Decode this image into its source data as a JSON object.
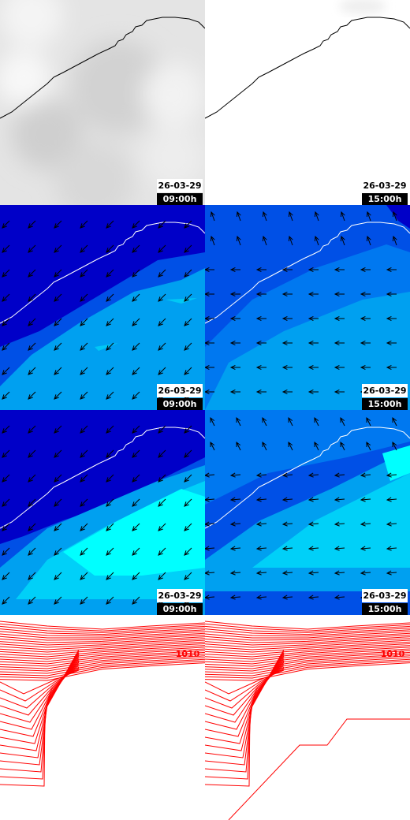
{
  "panels": [
    {
      "date": "26-03-29",
      "time": "09:00h"
    },
    {
      "date": "26-03-29",
      "time": "15:00h"
    },
    {
      "date": "26-03-29",
      "time": "09:00h"
    },
    {
      "date": "26-03-29",
      "time": "15:00h"
    },
    {
      "date": "26-03-29",
      "time": "09:00h"
    },
    {
      "date": "26-03-29",
      "time": "15:00h"
    }
  ],
  "contour_labels": [
    "1010",
    "1010"
  ]
}
